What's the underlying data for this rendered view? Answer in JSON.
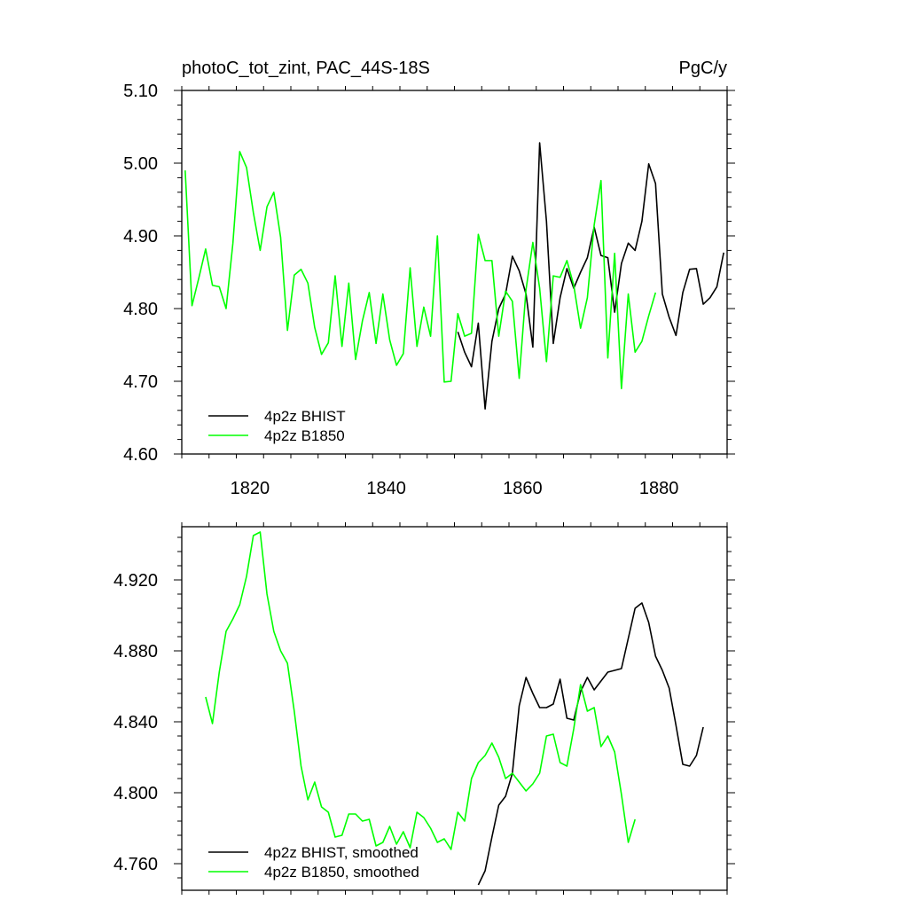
{
  "chart_data": [
    {
      "type": "line",
      "title": "photoC_tot_zint, PAC_44S-18S",
      "units": "PgC/y",
      "xlim": [
        1810,
        1890
      ],
      "ylim": [
        4.6,
        5.1
      ],
      "x_ticks": [
        1820,
        1840,
        1860,
        1880
      ],
      "x_tick_labels": [
        "1820",
        "1840",
        "1860",
        "1880"
      ],
      "y_ticks": [
        4.6,
        4.7,
        4.8,
        4.9,
        5.0,
        5.1
      ],
      "y_tick_labels": [
        "4.60",
        "4.70",
        "4.80",
        "4.90",
        "5.00",
        "5.10"
      ],
      "legend_position": "bottom-left",
      "colors": {
        "BHIST": "#000000",
        "B1850": "#00ff00"
      },
      "series": [
        {
          "name": "4p2z BHIST",
          "color": "#000000",
          "x": [
            1850.5,
            1851.5,
            1852.5,
            1853.5,
            1854.5,
            1855.5,
            1856.5,
            1857.5,
            1858.5,
            1859.5,
            1860.5,
            1861.5,
            1862.5,
            1863.5,
            1864.5,
            1865.5,
            1866.5,
            1867.5,
            1868.5,
            1869.5,
            1870.5,
            1871.5,
            1872.5,
            1873.5,
            1874.5,
            1875.5,
            1876.5,
            1877.5,
            1878.5,
            1879.5,
            1880.5,
            1881.5,
            1882.5,
            1883.5,
            1884.5,
            1885.5,
            1886.5,
            1887.5,
            1888.5,
            1889.5
          ],
          "values": [
            4.768,
            4.74,
            4.72,
            4.78,
            4.662,
            4.755,
            4.8,
            4.82,
            4.872,
            4.852,
            4.82,
            4.747,
            5.028,
            4.92,
            4.752,
            4.815,
            4.855,
            4.828,
            4.85,
            4.87,
            4.912,
            4.873,
            4.87,
            4.795,
            4.862,
            4.89,
            4.88,
            4.92,
            4.999,
            4.972,
            4.82,
            4.788,
            4.763,
            4.822,
            4.854,
            4.855,
            4.806,
            4.815,
            4.83,
            4.877
          ]
        },
        {
          "name": "4p2z B1850",
          "color": "#00ff00",
          "x": [
            1810.5,
            1811.5,
            1812.5,
            1813.5,
            1814.5,
            1815.5,
            1816.5,
            1817.5,
            1818.5,
            1819.5,
            1820.5,
            1821.5,
            1822.5,
            1823.5,
            1824.5,
            1825.5,
            1826.5,
            1827.5,
            1828.5,
            1829.5,
            1830.5,
            1831.5,
            1832.5,
            1833.5,
            1834.5,
            1835.5,
            1836.5,
            1837.5,
            1838.5,
            1839.5,
            1840.5,
            1841.5,
            1842.5,
            1843.5,
            1844.5,
            1845.5,
            1846.5,
            1847.5,
            1848.5,
            1849.5,
            1850.5,
            1851.5,
            1852.5,
            1853.5,
            1854.5,
            1855.5,
            1856.5,
            1857.5,
            1858.5,
            1859.5,
            1860.5,
            1861.5,
            1862.5,
            1863.5,
            1864.5,
            1865.5,
            1866.5,
            1867.5,
            1868.5,
            1869.5,
            1870.5,
            1871.5,
            1872.5,
            1873.5,
            1874.5,
            1875.5,
            1876.5,
            1877.5,
            1878.5,
            1879.5
          ],
          "values": [
            4.99,
            4.804,
            4.842,
            4.882,
            4.832,
            4.83,
            4.8,
            4.89,
            5.016,
            4.994,
            4.932,
            4.88,
            4.94,
            4.96,
            4.898,
            4.77,
            4.846,
            4.854,
            4.835,
            4.774,
            4.737,
            4.753,
            4.845,
            4.748,
            4.835,
            4.73,
            4.783,
            4.822,
            4.752,
            4.82,
            4.757,
            4.722,
            4.738,
            4.856,
            4.748,
            4.802,
            4.762,
            4.9,
            4.699,
            4.7,
            4.793,
            4.762,
            4.766,
            4.902,
            4.866,
            4.866,
            4.762,
            4.824,
            4.81,
            4.704,
            4.826,
            4.891,
            4.828,
            4.727,
            4.845,
            4.843,
            4.866,
            4.832,
            4.773,
            4.815,
            4.915,
            4.976,
            4.732,
            4.876,
            4.69,
            4.82,
            4.74,
            4.755,
            4.79,
            4.822
          ]
        }
      ]
    },
    {
      "type": "line",
      "title": "",
      "xlim": [
        1810,
        1890
      ],
      "ylim": [
        4.745,
        4.95
      ],
      "x_ticks": [
        1820,
        1840,
        1860,
        1880
      ],
      "y_ticks": [
        4.76,
        4.8,
        4.84,
        4.88,
        4.92
      ],
      "y_tick_labels": [
        "4.760",
        "4.800",
        "4.840",
        "4.880",
        "4.920"
      ],
      "legend_position": "bottom-left",
      "colors": {
        "BHIST": "#000000",
        "B1850": "#00ff00"
      },
      "series": [
        {
          "name": "4p2z BHIST, smoothed",
          "color": "#000000",
          "x": [
            1853.5,
            1854.5,
            1855.5,
            1856.5,
            1857.5,
            1858.5,
            1859.5,
            1860.5,
            1861.5,
            1862.5,
            1863.5,
            1864.5,
            1865.5,
            1866.5,
            1867.5,
            1868.5,
            1869.5,
            1870.5,
            1871.5,
            1872.5,
            1873.5,
            1874.5,
            1875.5,
            1876.5,
            1877.5,
            1878.5,
            1879.5,
            1880.5,
            1881.5,
            1882.5,
            1883.5,
            1884.5,
            1885.5,
            1886.5
          ],
          "values": [
            4.748,
            4.756,
            4.775,
            4.793,
            4.798,
            4.811,
            4.849,
            4.865,
            4.856,
            4.848,
            4.848,
            4.85,
            4.864,
            4.842,
            4.841,
            4.857,
            4.865,
            4.858,
            4.863,
            4.868,
            4.869,
            4.87,
            4.887,
            4.904,
            4.907,
            4.896,
            4.877,
            4.869,
            4.859,
            4.838,
            4.816,
            4.815,
            4.821,
            4.837
          ]
        },
        {
          "name": "4p2z B1850, smoothed",
          "color": "#00ff00",
          "x": [
            1813.5,
            1814.5,
            1815.5,
            1816.5,
            1817.5,
            1818.5,
            1819.5,
            1820.5,
            1821.5,
            1822.5,
            1823.5,
            1824.5,
            1825.5,
            1826.5,
            1827.5,
            1828.5,
            1829.5,
            1830.5,
            1831.5,
            1832.5,
            1833.5,
            1834.5,
            1835.5,
            1836.5,
            1837.5,
            1838.5,
            1839.5,
            1840.5,
            1841.5,
            1842.5,
            1843.5,
            1844.5,
            1845.5,
            1846.5,
            1847.5,
            1848.5,
            1849.5,
            1850.5,
            1851.5,
            1852.5,
            1853.5,
            1854.5,
            1855.5,
            1856.5,
            1857.5,
            1858.5,
            1859.5,
            1860.5,
            1861.5,
            1862.5,
            1863.5,
            1864.5,
            1865.5,
            1866.5,
            1867.5,
            1868.5,
            1869.5,
            1870.5,
            1871.5,
            1872.5,
            1873.5,
            1874.5,
            1875.5,
            1876.5
          ],
          "values": [
            4.854,
            4.839,
            4.868,
            4.891,
            4.898,
            4.906,
            4.922,
            4.945,
            4.947,
            4.912,
            4.891,
            4.88,
            4.873,
            4.846,
            4.815,
            4.796,
            4.806,
            4.792,
            4.789,
            4.775,
            4.776,
            4.788,
            4.788,
            4.784,
            4.785,
            4.77,
            4.772,
            4.781,
            4.771,
            4.778,
            4.769,
            4.789,
            4.786,
            4.78,
            4.772,
            4.774,
            4.768,
            4.789,
            4.784,
            4.808,
            4.817,
            4.821,
            4.828,
            4.82,
            4.808,
            4.811,
            4.806,
            4.801,
            4.805,
            4.811,
            4.832,
            4.833,
            4.817,
            4.815,
            4.836,
            4.861,
            4.846,
            4.848,
            4.826,
            4.832,
            4.823,
            4.799,
            4.772,
            4.785
          ]
        }
      ]
    }
  ]
}
